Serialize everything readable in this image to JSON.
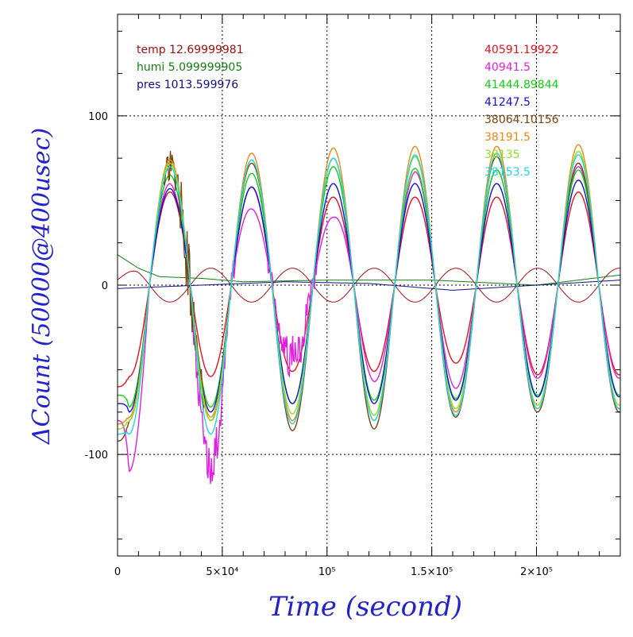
{
  "chart_data": {
    "type": "line",
    "xlabel": "Time (second)",
    "ylabel": "ΔCount (50000@400usec)",
    "xlim": [
      0,
      240000
    ],
    "ylim": [
      -160,
      160
    ],
    "grid": true,
    "x_ticks": [
      {
        "value": 0,
        "label": "0"
      },
      {
        "value": 50000,
        "label": "5×10⁴"
      },
      {
        "value": 100000,
        "label": "10⁵"
      },
      {
        "value": 150000,
        "label": "1.5×10⁵"
      },
      {
        "value": 200000,
        "label": "2×10⁵"
      }
    ],
    "y_ticks": [
      {
        "value": 100,
        "label": "100"
      },
      {
        "value": 0,
        "label": "0"
      },
      {
        "value": -100,
        "label": "-100"
      }
    ],
    "legend_left": [
      {
        "text": "temp 12.69999981",
        "color": "#a01010"
      },
      {
        "text": "humi 5.099999905",
        "color": "#108010"
      },
      {
        "text": "pres 1013.599976",
        "color": "#101080"
      }
    ],
    "legend_right": [
      {
        "text": "40591.19922",
        "color": "#e8101e"
      },
      {
        "text": "40941.5",
        "color": "#e020e0"
      },
      {
        "text": "41444.89844",
        "color": "#10d010"
      },
      {
        "text": "41247.5",
        "color": "#1010d8"
      },
      {
        "text": "38064.10156",
        "color": "#7a4410"
      },
      {
        "text": "38191.5",
        "color": "#f08810"
      },
      {
        "text": "38135",
        "color": "#90e020"
      },
      {
        "text": "38153.5",
        "color": "#20d8e0"
      }
    ],
    "oscillation": {
      "period": 39000,
      "first_peak_x": 25000,
      "peak_x": [
        25000,
        64000,
        104000,
        143000,
        182000,
        221000
      ]
    },
    "series": [
      {
        "name": "40591.19922",
        "color": "#e8101e",
        "peaks": [
          55,
          58,
          52,
          52,
          52,
          55
        ],
        "troughs": [
          -54,
          -51,
          -51,
          -46,
          -53
        ],
        "start": -60
      },
      {
        "name": "40941.5",
        "color": "#e020e0",
        "peaks": [
          60,
          45,
          40,
          67,
          68,
          70
        ],
        "troughs": [
          -110,
          -40,
          -57,
          -61,
          -55
        ],
        "start": -80
      },
      {
        "name": "41444.89844",
        "color": "#10d010",
        "peaks": [
          65,
          66,
          70,
          69,
          68,
          68
        ],
        "troughs": [
          -72,
          -70,
          -68,
          -67,
          -65
        ],
        "start": -65
      },
      {
        "name": "41247.5",
        "color": "#1010d8",
        "peaks": [
          57,
          58,
          60,
          60,
          60,
          62
        ],
        "troughs": [
          -75,
          -70,
          -70,
          -68,
          -66
        ],
        "start": -70
      },
      {
        "name": "38064.10156",
        "color": "#7a4410",
        "peaks": [
          70,
          72,
          75,
          76,
          76,
          72
        ],
        "troughs": [
          -80,
          -86,
          -85,
          -78,
          -75
        ],
        "start": -92
      },
      {
        "name": "38191.5",
        "color": "#f08810",
        "peaks": [
          74,
          78,
          81,
          82,
          82,
          83
        ],
        "troughs": [
          -78,
          -80,
          -80,
          -75,
          -73
        ],
        "start": -82
      },
      {
        "name": "38135",
        "color": "#90e020",
        "peaks": [
          72,
          74,
          75,
          76,
          78,
          79
        ],
        "troughs": [
          -80,
          -76,
          -77,
          -73,
          -71
        ],
        "start": -85
      },
      {
        "name": "38153.5",
        "color": "#20d8e0",
        "peaks": [
          70,
          74,
          75,
          77,
          78,
          77
        ],
        "troughs": [
          -88,
          -82,
          -80,
          -77,
          -73
        ],
        "start": -88
      }
    ],
    "environment": [
      {
        "name": "temp",
        "color": "#a01010",
        "amplitude": 10,
        "offset": 0
      },
      {
        "name": "humi",
        "color": "#108010",
        "points": [
          [
            0,
            18
          ],
          [
            10000,
            10
          ],
          [
            20000,
            5
          ],
          [
            40000,
            4
          ],
          [
            60000,
            2
          ],
          [
            100000,
            3
          ],
          [
            150000,
            3
          ],
          [
            200000,
            0
          ],
          [
            240000,
            6
          ]
        ]
      },
      {
        "name": "pres",
        "color": "#101080",
        "points": [
          [
            0,
            -2
          ],
          [
            40000,
            0
          ],
          [
            80000,
            2
          ],
          [
            120000,
            1
          ],
          [
            160000,
            -3
          ],
          [
            200000,
            0
          ],
          [
            240000,
            3
          ]
        ]
      }
    ]
  }
}
